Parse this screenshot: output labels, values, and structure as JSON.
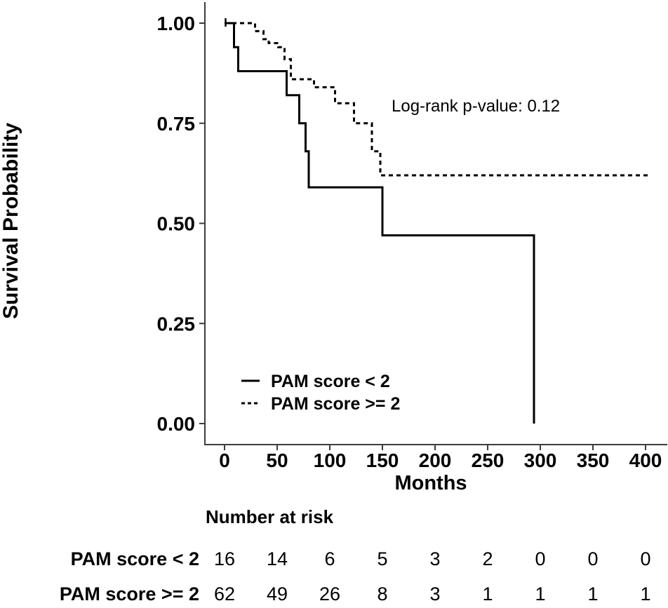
{
  "chart_data": {
    "type": "line",
    "subtype": "kaplan-meier-step",
    "title": "",
    "xlabel": "Months",
    "ylabel": "Survival Probability",
    "annotation": "Log-rank p-value: 0.12",
    "x_ticks": [
      0,
      50,
      100,
      150,
      200,
      250,
      300,
      350,
      400
    ],
    "y_ticks": [
      "1.00",
      "0.75",
      "0.50",
      "0.25",
      "0.00"
    ],
    "y_tick_values": [
      1.0,
      0.75,
      0.5,
      0.25,
      0.0
    ],
    "xlim": [
      -19,
      421
    ],
    "ylim": [
      0,
      1.0
    ],
    "grid": false,
    "legend_position": "inside-bottom-left",
    "colors": {
      "curve": "#000000",
      "axis": "#3c3c3c",
      "text": "#000000"
    },
    "series": [
      {
        "name": "PAM score < 2",
        "line": "solid",
        "steps": [
          [
            0,
            1.0
          ],
          [
            9,
            0.94
          ],
          [
            13,
            0.88
          ],
          [
            59,
            0.82
          ],
          [
            71,
            0.75
          ],
          [
            77,
            0.68
          ],
          [
            80,
            0.59
          ],
          [
            150,
            0.47
          ],
          [
            294,
            0.0
          ]
        ],
        "end_time": 294,
        "censor_times": [
          1
        ]
      },
      {
        "name": "PAM score >= 2",
        "line": "dashed",
        "steps": [
          [
            0,
            1.0
          ],
          [
            29,
            0.98
          ],
          [
            37,
            0.96
          ],
          [
            42,
            0.95
          ],
          [
            51,
            0.94
          ],
          [
            57,
            0.91
          ],
          [
            63,
            0.86
          ],
          [
            85,
            0.84
          ],
          [
            105,
            0.8
          ],
          [
            123,
            0.75
          ],
          [
            140,
            0.68
          ],
          [
            148,
            0.62
          ]
        ],
        "end_time": 405,
        "censor_times": []
      }
    ],
    "risk_table": {
      "title": "Number at risk",
      "time_points": [
        0,
        50,
        100,
        150,
        200,
        250,
        300,
        350,
        400
      ],
      "rows": [
        {
          "label": "PAM score < 2",
          "values": [
            "16",
            "14",
            "6",
            "5",
            "3",
            "2",
            "0",
            "0",
            "0"
          ]
        },
        {
          "label": "PAM score >= 2",
          "values": [
            "62",
            "49",
            "26",
            "8",
            "3",
            "1",
            "1",
            "1",
            "1"
          ]
        }
      ]
    }
  }
}
